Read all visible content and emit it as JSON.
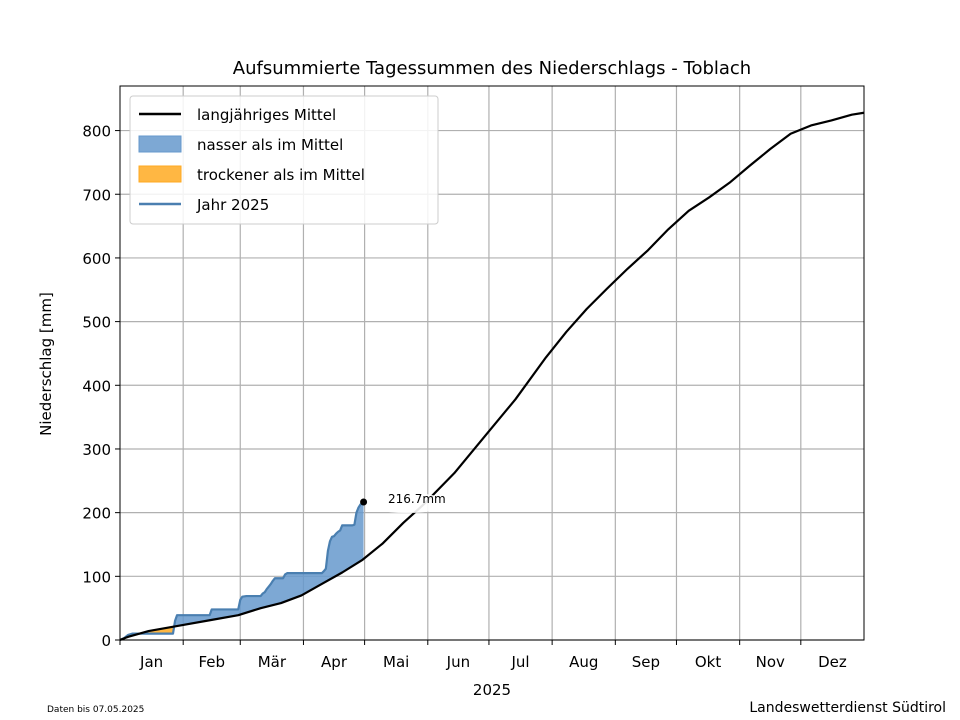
{
  "chart_data": {
    "type": "line",
    "title": "Aufsummierte Tagessummen des Niederschlags - Toblach",
    "xlabel": "2025",
    "ylabel": "Niederschlag [mm]",
    "ylim": [
      0,
      870
    ],
    "yticks": [
      0,
      100,
      200,
      300,
      400,
      500,
      600,
      700,
      800
    ],
    "month_labels": [
      "Jan",
      "Feb",
      "Mär",
      "Apr",
      "Mai",
      "Jun",
      "Jul",
      "Aug",
      "Sep",
      "Okt",
      "Nov",
      "Dez"
    ],
    "month_starts": [
      1,
      32,
      60,
      91,
      121,
      152,
      182,
      213,
      244,
      274,
      305,
      335
    ],
    "xlim": [
      1,
      366
    ],
    "grid": true,
    "legend_position": "top-left",
    "legend": [
      {
        "label": "langjähriges Mittel",
        "kind": "line",
        "color": "#000000"
      },
      {
        "label": "nasser als im Mittel",
        "kind": "patch",
        "color": "#6699cc"
      },
      {
        "label": "trockener als im Mittel",
        "kind": "patch",
        "color": "#ffaa22"
      },
      {
        "label": "Jahr 2025",
        "kind": "line",
        "color": "#4a7fb0"
      }
    ],
    "series": [
      {
        "name": "langjähriges Mittel",
        "color": "#000000",
        "x": [
          1,
          5,
          15,
          31,
          45,
          59,
          70,
          80,
          90,
          100,
          110,
          120,
          130,
          140,
          150,
          165,
          180,
          195,
          210,
          220,
          230,
          240,
          250,
          260,
          270,
          280,
          290,
          300,
          310,
          320,
          330,
          340,
          350,
          360,
          366
        ],
        "y": [
          0,
          5,
          14,
          23,
          31,
          39,
          50,
          58,
          70,
          88,
          106,
          126,
          152,
          184,
          213,
          262,
          320,
          378,
          444,
          484,
          520,
          552,
          583,
          612,
          645,
          674,
          695,
          718,
          745,
          771,
          795,
          808,
          816,
          825,
          828
        ]
      },
      {
        "name": "Jahr 2025",
        "color": "#4a7fb0",
        "x": [
          1,
          3,
          5,
          7,
          27,
          28,
          29,
          45,
          46,
          59,
          60,
          61,
          63,
          70,
          71,
          72,
          73,
          74,
          75,
          76,
          77,
          78,
          79,
          80,
          81,
          82,
          83,
          100,
          101,
          102,
          103,
          104,
          105,
          106,
          107,
          108,
          109,
          110,
          115,
          116,
          117,
          118,
          119,
          120,
          120.5
        ],
        "y": [
          0,
          3,
          8,
          10,
          10,
          30,
          39,
          39,
          48,
          48,
          63,
          68,
          69,
          69,
          73,
          75,
          80,
          84,
          88,
          93,
          97,
          97,
          97,
          97,
          97,
          103,
          105,
          105,
          108,
          112,
          140,
          155,
          162,
          163,
          167,
          170,
          172,
          180,
          180,
          181,
          200,
          208,
          213,
          214,
          216.7
        ]
      }
    ],
    "annotation": "216.7mm",
    "footer_left": "Daten bis 07.05.2025",
    "footer_right": "Landeswetterdienst Südtirol"
  }
}
